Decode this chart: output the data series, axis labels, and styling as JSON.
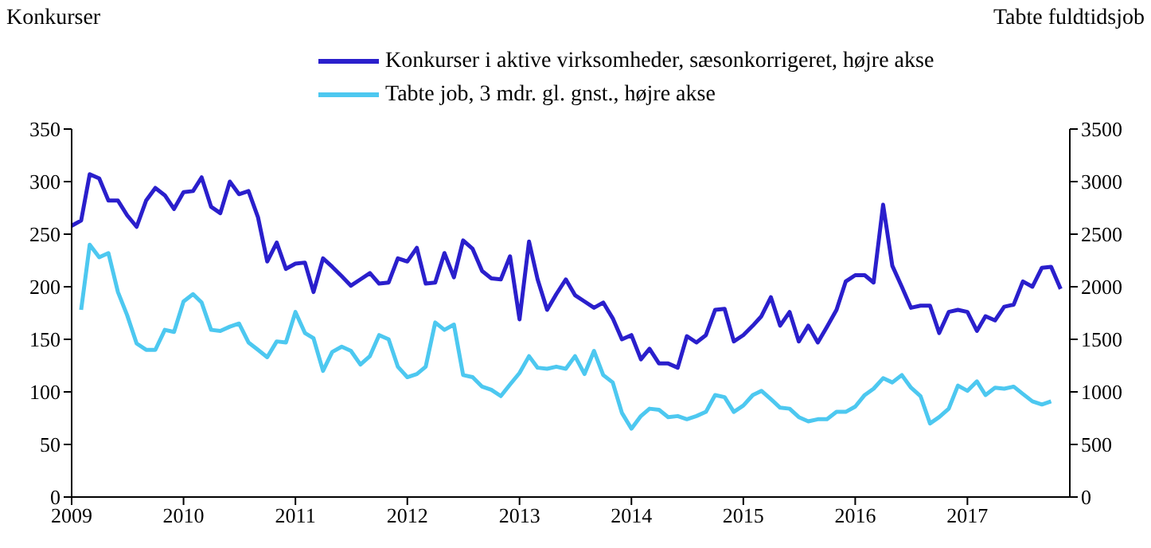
{
  "chart_data": {
    "type": "line",
    "ylabel": "Konkurser",
    "y2label": "Tabte fuldtidsjob",
    "x": [
      "2009-01",
      "2009-02",
      "2009-03",
      "2009-04",
      "2009-05",
      "2009-06",
      "2009-07",
      "2009-08",
      "2009-09",
      "2009-10",
      "2009-11",
      "2009-12",
      "2010-01",
      "2010-02",
      "2010-03",
      "2010-04",
      "2010-05",
      "2010-06",
      "2010-07",
      "2010-08",
      "2010-09",
      "2010-10",
      "2010-11",
      "2010-12",
      "2011-01",
      "2011-02",
      "2011-03",
      "2011-04",
      "2011-05",
      "2011-06",
      "2011-07",
      "2011-08",
      "2011-09",
      "2011-10",
      "2011-11",
      "2011-12",
      "2012-01",
      "2012-02",
      "2012-03",
      "2012-04",
      "2012-05",
      "2012-06",
      "2012-07",
      "2012-08",
      "2012-09",
      "2012-10",
      "2012-11",
      "2012-12",
      "2013-01",
      "2013-02",
      "2013-03",
      "2013-04",
      "2013-05",
      "2013-06",
      "2013-07",
      "2013-08",
      "2013-09",
      "2013-10",
      "2013-11",
      "2013-12",
      "2014-01",
      "2014-02",
      "2014-03",
      "2014-04",
      "2014-05",
      "2014-06",
      "2014-07",
      "2014-08",
      "2014-09",
      "2014-10",
      "2014-11",
      "2014-12",
      "2015-01",
      "2015-02",
      "2015-03",
      "2015-04",
      "2015-05",
      "2015-06",
      "2015-07",
      "2015-08",
      "2015-09",
      "2015-10",
      "2015-11",
      "2015-12",
      "2016-01",
      "2016-02",
      "2016-03",
      "2016-04",
      "2016-05",
      "2016-06",
      "2016-07",
      "2016-08",
      "2016-09",
      "2016-10",
      "2016-11",
      "2016-12",
      "2017-01",
      "2017-02",
      "2017-03",
      "2017-04",
      "2017-05",
      "2017-06",
      "2017-07",
      "2017-08",
      "2017-09",
      "2017-10",
      "2017-11"
    ],
    "series": [
      {
        "name": "Konkurser i aktive virksomheder, sæsonkorrigeret, højre akse",
        "color": "#2a1fcc",
        "values": [
          258,
          263,
          307,
          303,
          282,
          282,
          268,
          257,
          282,
          294,
          287,
          274,
          290,
          291,
          304,
          276,
          270,
          300,
          288,
          291,
          266,
          224,
          242,
          217,
          222,
          223,
          195,
          227,
          219,
          210,
          201,
          207,
          213,
          203,
          204,
          227,
          224,
          237,
          203,
          204,
          232,
          209,
          244,
          236,
          215,
          208,
          207,
          229,
          169,
          243,
          207,
          178,
          193,
          207,
          192,
          186,
          180,
          185,
          170,
          150,
          154,
          131,
          141,
          127,
          127,
          123,
          153,
          147,
          154,
          178,
          179,
          148,
          154,
          163,
          172,
          190,
          163,
          176,
          148,
          163,
          147,
          162,
          178,
          205,
          211,
          211,
          204,
          278,
          220,
          200,
          180,
          182,
          182,
          156,
          176,
          178,
          176,
          158,
          172,
          168,
          181,
          183,
          205,
          200,
          218,
          219,
          198
        ]
      },
      {
        "name": "Tabte job, 3 mdr. gl. gnst., højre akse",
        "color": "#4dc8f0",
        "axis": "y2",
        "values": [
          null,
          1780,
          2400,
          2280,
          2320,
          1950,
          1730,
          1460,
          1400,
          1400,
          1590,
          1570,
          1860,
          1930,
          1850,
          1590,
          1580,
          1620,
          1650,
          1470,
          1400,
          1330,
          1480,
          1470,
          1760,
          1560,
          1510,
          1200,
          1380,
          1430,
          1390,
          1260,
          1340,
          1540,
          1500,
          1240,
          1140,
          1170,
          1240,
          1660,
          1590,
          1640,
          1160,
          1140,
          1050,
          1020,
          960,
          1070,
          1180,
          1340,
          1230,
          1220,
          1240,
          1220,
          1340,
          1170,
          1390,
          1160,
          1090,
          800,
          650,
          770,
          840,
          830,
          760,
          770,
          740,
          770,
          810,
          970,
          950,
          810,
          870,
          970,
          1010,
          930,
          850,
          840,
          760,
          720,
          740,
          740,
          810,
          810,
          860,
          970,
          1030,
          1130,
          1090,
          1160,
          1040,
          960,
          700,
          760,
          840,
          1060,
          1010,
          1100,
          970,
          1040,
          1030,
          1050,
          980,
          910,
          880,
          910,
          null
        ]
      }
    ],
    "xlim": [
      "2009-01",
      "2017-12"
    ],
    "xticks": [
      "2009",
      "2010",
      "2011",
      "2012",
      "2013",
      "2014",
      "2015",
      "2016",
      "2017"
    ],
    "ylim": [
      0,
      350
    ],
    "yticks": [
      0,
      50,
      100,
      150,
      200,
      250,
      300,
      350
    ],
    "y2lim": [
      0,
      3500
    ],
    "y2ticks": [
      0,
      500,
      1000,
      1500,
      2000,
      2500,
      3000,
      3500
    ],
    "grid": false,
    "legend": "top",
    "marker": "none",
    "line_style": "solid"
  }
}
